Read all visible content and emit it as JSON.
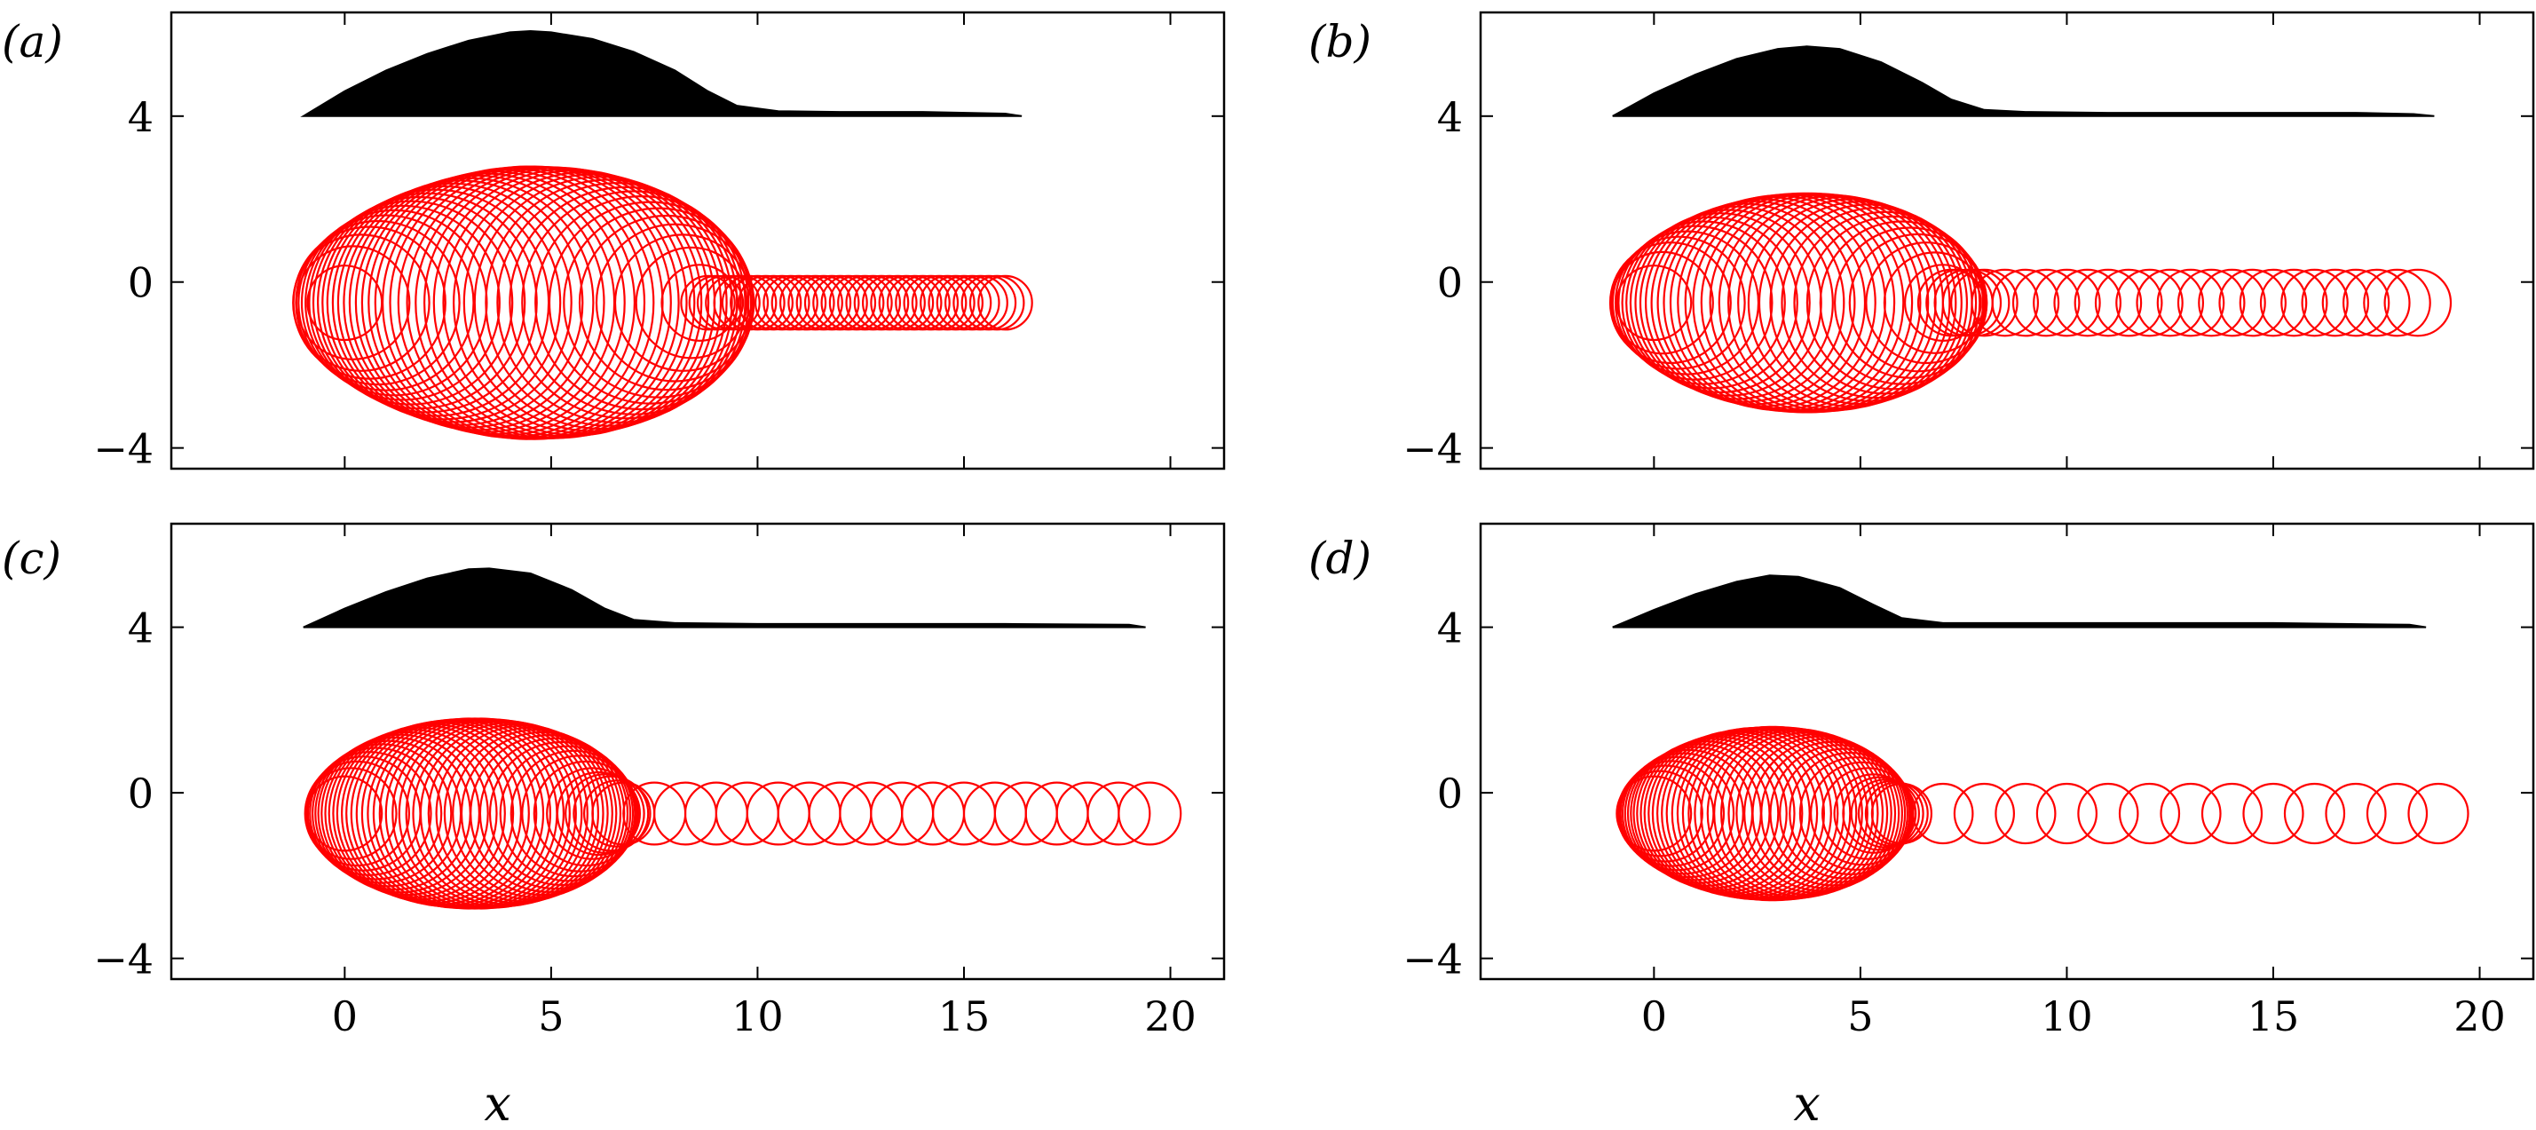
{
  "figure": {
    "x_axis_label": "x",
    "colors": {
      "profile": "#000000",
      "circles": "#ff0000",
      "axis": "#000000"
    }
  },
  "chart_data": [
    {
      "type": "scatter",
      "panel_label": "(a)",
      "xlim": [
        -4.2,
        21.3
      ],
      "ylim": [
        -4.5,
        6.5
      ],
      "xticks": [
        0,
        5,
        10,
        15,
        20
      ],
      "yticks": [
        -4,
        0,
        4
      ],
      "ytick_labels": [
        "−4",
        "0",
        "4"
      ],
      "show_xticklabels": false,
      "show_xlabel": false,
      "profile": {
        "baseline": 4.0,
        "x": [
          -1.0,
          0.0,
          1.0,
          2.0,
          3.0,
          4.0,
          4.5,
          5.0,
          6.0,
          7.0,
          8.0,
          8.8,
          9.5,
          10.5,
          12.0,
          14.0,
          16.0,
          16.4
        ],
        "height": [
          0.0,
          0.6,
          1.1,
          1.5,
          1.82,
          2.02,
          2.05,
          2.02,
          1.86,
          1.55,
          1.1,
          0.6,
          0.25,
          0.12,
          0.1,
          0.1,
          0.06,
          0.0
        ]
      },
      "circles": {
        "center_y": -0.5,
        "x": [
          0.0,
          0.2,
          0.4,
          0.6,
          0.8,
          1.0,
          1.2,
          1.4,
          1.6,
          1.8,
          2.0,
          2.2,
          2.4,
          2.6,
          2.8,
          3.0,
          3.2,
          3.4,
          3.6,
          3.8,
          4.0,
          4.2,
          4.4,
          4.6,
          4.8,
          5.0,
          5.2,
          5.4,
          5.6,
          5.8,
          6.0,
          6.2,
          6.4,
          6.6,
          6.8,
          7.0,
          7.2,
          7.4,
          7.6,
          7.8,
          8.0,
          8.2,
          8.4,
          8.6,
          8.8,
          9.0,
          9.2,
          9.4,
          9.6,
          9.8,
          10.0,
          10.2,
          10.4,
          10.6,
          10.8,
          11.0,
          11.2,
          11.4,
          11.6,
          11.8,
          12.0,
          12.2,
          12.4,
          12.6,
          12.8,
          13.0,
          13.2,
          13.4,
          13.6,
          13.8,
          14.0,
          14.2,
          14.4,
          14.6,
          14.8,
          15.0,
          15.2,
          15.4,
          15.6,
          15.8,
          16.0
        ],
        "radius": [
          0.9,
          1.37,
          1.65,
          1.84,
          1.98,
          2.12,
          2.24,
          2.35,
          2.46,
          2.56,
          2.65,
          2.74,
          2.82,
          2.89,
          2.96,
          3.02,
          3.08,
          3.13,
          3.18,
          3.22,
          3.26,
          3.28,
          3.3,
          3.3,
          3.29,
          3.28,
          3.27,
          3.24,
          3.21,
          3.16,
          3.11,
          3.05,
          2.98,
          2.9,
          2.8,
          2.7,
          2.58,
          2.44,
          2.29,
          2.11,
          1.9,
          1.65,
          1.34,
          0.92,
          0.65,
          0.65,
          0.65,
          0.65,
          0.65,
          0.65,
          0.65,
          0.65,
          0.65,
          0.65,
          0.65,
          0.65,
          0.65,
          0.65,
          0.65,
          0.65,
          0.65,
          0.65,
          0.65,
          0.65,
          0.65,
          0.65,
          0.65,
          0.65,
          0.65,
          0.65,
          0.65,
          0.65,
          0.65,
          0.65,
          0.65,
          0.65,
          0.65,
          0.65,
          0.65,
          0.65,
          0.65
        ]
      }
    },
    {
      "type": "scatter",
      "panel_label": "(b)",
      "xlim": [
        -4.2,
        21.3
      ],
      "ylim": [
        -4.5,
        6.5
      ],
      "xticks": [
        0,
        5,
        10,
        15,
        20
      ],
      "yticks": [
        -4,
        0,
        4
      ],
      "ytick_labels": [
        "−4",
        "0",
        "4"
      ],
      "show_xticklabels": false,
      "show_xlabel": false,
      "profile": {
        "baseline": 4.0,
        "x": [
          -1.0,
          0.0,
          1.0,
          2.0,
          3.0,
          3.7,
          4.5,
          5.5,
          6.5,
          7.2,
          8.0,
          9.0,
          11.0,
          14.0,
          17.0,
          18.4,
          18.9
        ],
        "height": [
          0.0,
          0.55,
          1.0,
          1.38,
          1.62,
          1.68,
          1.62,
          1.3,
          0.8,
          0.4,
          0.15,
          0.1,
          0.08,
          0.08,
          0.08,
          0.05,
          0.0
        ]
      },
      "circles": {
        "center_y": -0.5,
        "x": [
          0.0,
          0.2,
          0.4,
          0.6,
          0.8,
          1.0,
          1.2,
          1.4,
          1.6,
          1.8,
          2.0,
          2.2,
          2.4,
          2.6,
          2.8,
          3.0,
          3.2,
          3.4,
          3.6,
          3.8,
          4.0,
          4.2,
          4.4,
          4.6,
          4.8,
          5.0,
          5.2,
          5.4,
          5.6,
          5.8,
          6.0,
          6.2,
          6.4,
          6.6,
          6.8,
          7.0,
          7.2,
          7.4,
          7.6,
          7.8,
          8.0,
          8.5,
          9.0,
          9.5,
          10.0,
          10.5,
          11.0,
          11.5,
          12.0,
          12.5,
          13.0,
          13.5,
          14.0,
          14.5,
          15.0,
          15.5,
          16.0,
          16.5,
          17.0,
          17.5,
          18.0,
          18.5
        ],
        "radius": [
          0.9,
          1.23,
          1.46,
          1.6,
          1.73,
          1.86,
          1.97,
          2.07,
          2.17,
          2.25,
          2.33,
          2.4,
          2.46,
          2.51,
          2.56,
          2.6,
          2.62,
          2.64,
          2.65,
          2.65,
          2.64,
          2.62,
          2.6,
          2.56,
          2.51,
          2.45,
          2.38,
          2.3,
          2.2,
          2.09,
          1.97,
          1.82,
          1.66,
          1.46,
          1.22,
          0.92,
          0.8,
          0.8,
          0.8,
          0.8,
          0.8,
          0.8,
          0.8,
          0.8,
          0.8,
          0.8,
          0.8,
          0.8,
          0.8,
          0.8,
          0.8,
          0.8,
          0.8,
          0.8,
          0.8,
          0.8,
          0.8,
          0.8,
          0.8,
          0.8,
          0.8,
          0.8
        ]
      }
    },
    {
      "type": "scatter",
      "panel_label": "(c)",
      "xlim": [
        -4.2,
        21.3
      ],
      "ylim": [
        -4.5,
        6.5
      ],
      "xticks": [
        0,
        5,
        10,
        15,
        20
      ],
      "yticks": [
        -4,
        0,
        4
      ],
      "ytick_labels": [
        "−4",
        "0",
        "4"
      ],
      "xtick_labels": [
        "0",
        "5",
        "10",
        "15",
        "20"
      ],
      "show_xticklabels": true,
      "show_xlabel": true,
      "profile": {
        "baseline": 4.0,
        "x": [
          -1.0,
          0.0,
          1.0,
          2.0,
          3.0,
          3.5,
          4.5,
          5.5,
          6.3,
          7.0,
          8.0,
          10.0,
          13.0,
          16.0,
          19.0,
          19.4
        ],
        "height": [
          0.0,
          0.45,
          0.85,
          1.18,
          1.4,
          1.42,
          1.3,
          0.9,
          0.45,
          0.18,
          0.1,
          0.08,
          0.08,
          0.08,
          0.06,
          0.0
        ]
      },
      "circles": {
        "center_y": -0.5,
        "x": [
          0.0,
          0.15,
          0.3,
          0.45,
          0.6,
          0.75,
          0.9,
          1.05,
          1.2,
          1.35,
          1.5,
          1.65,
          1.8,
          1.95,
          2.1,
          2.25,
          2.4,
          2.55,
          2.7,
          2.85,
          3.0,
          3.15,
          3.3,
          3.45,
          3.6,
          3.75,
          3.9,
          4.05,
          4.2,
          4.35,
          4.5,
          4.65,
          4.8,
          4.95,
          5.1,
          5.25,
          5.4,
          5.55,
          5.7,
          5.85,
          6.0,
          6.15,
          6.3,
          6.45,
          6.6,
          6.75,
          7.5,
          8.25,
          9.0,
          9.75,
          10.5,
          11.25,
          12.0,
          12.75,
          13.5,
          14.25,
          15.0,
          15.75,
          16.5,
          17.25,
          18.0,
          18.75,
          19.5
        ],
        "radius": [
          0.9,
          1.1,
          1.26,
          1.38,
          1.49,
          1.59,
          1.68,
          1.76,
          1.84,
          1.91,
          1.97,
          2.03,
          2.08,
          2.13,
          2.17,
          2.21,
          2.24,
          2.26,
          2.28,
          2.29,
          2.3,
          2.3,
          2.3,
          2.29,
          2.28,
          2.26,
          2.24,
          2.21,
          2.17,
          2.13,
          2.08,
          2.03,
          1.97,
          1.9,
          1.82,
          1.73,
          1.63,
          1.52,
          1.4,
          1.26,
          1.1,
          1.0,
          0.95,
          0.9,
          0.8,
          0.75,
          0.75,
          0.75,
          0.75,
          0.75,
          0.75,
          0.75,
          0.75,
          0.75,
          0.75,
          0.75,
          0.75,
          0.75,
          0.75,
          0.75,
          0.75,
          0.75,
          0.75
        ]
      }
    },
    {
      "type": "scatter",
      "panel_label": "(d)",
      "xlim": [
        -4.2,
        21.3
      ],
      "ylim": [
        -4.5,
        6.5
      ],
      "xticks": [
        0,
        5,
        10,
        15,
        20
      ],
      "yticks": [
        -4,
        0,
        4
      ],
      "ytick_labels": [
        "−4",
        "0",
        "4"
      ],
      "xtick_labels": [
        "0",
        "5",
        "10",
        "15",
        "20"
      ],
      "show_xticklabels": true,
      "show_xlabel": true,
      "profile": {
        "baseline": 4.0,
        "x": [
          -1.0,
          0.0,
          1.0,
          2.0,
          2.8,
          3.5,
          4.5,
          5.3,
          6.0,
          7.0,
          9.0,
          12.0,
          15.0,
          18.3,
          18.7
        ],
        "height": [
          0.0,
          0.42,
          0.8,
          1.1,
          1.25,
          1.22,
          0.95,
          0.55,
          0.22,
          0.1,
          0.1,
          0.1,
          0.1,
          0.06,
          0.0
        ]
      },
      "circles": {
        "center_y": -0.5,
        "x": [
          0.0,
          0.14,
          0.28,
          0.42,
          0.56,
          0.7,
          0.84,
          0.98,
          1.12,
          1.26,
          1.4,
          1.54,
          1.68,
          1.82,
          1.96,
          2.1,
          2.24,
          2.38,
          2.52,
          2.66,
          2.8,
          2.94,
          3.08,
          3.22,
          3.36,
          3.5,
          3.64,
          3.78,
          3.92,
          4.06,
          4.2,
          4.34,
          4.48,
          4.62,
          4.76,
          4.9,
          5.04,
          5.18,
          5.32,
          5.46,
          5.6,
          5.74,
          5.88,
          6.0,
          7.0,
          8.0,
          9.0,
          10.0,
          11.0,
          12.0,
          13.0,
          14.0,
          15.0,
          16.0,
          17.0,
          18.0,
          19.0
        ],
        "radius": [
          0.9,
          1.03,
          1.16,
          1.27,
          1.37,
          1.46,
          1.54,
          1.61,
          1.68,
          1.75,
          1.81,
          1.86,
          1.91,
          1.95,
          1.99,
          2.02,
          2.05,
          2.07,
          2.08,
          2.09,
          2.1,
          2.1,
          2.09,
          2.08,
          2.06,
          2.04,
          2.01,
          1.97,
          1.92,
          1.87,
          1.81,
          1.74,
          1.66,
          1.57,
          1.47,
          1.36,
          1.24,
          1.1,
          0.95,
          0.88,
          0.82,
          0.78,
          0.75,
          0.72,
          0.72,
          0.72,
          0.72,
          0.72,
          0.72,
          0.72,
          0.72,
          0.72,
          0.72,
          0.72,
          0.72,
          0.72,
          0.72
        ]
      }
    }
  ]
}
